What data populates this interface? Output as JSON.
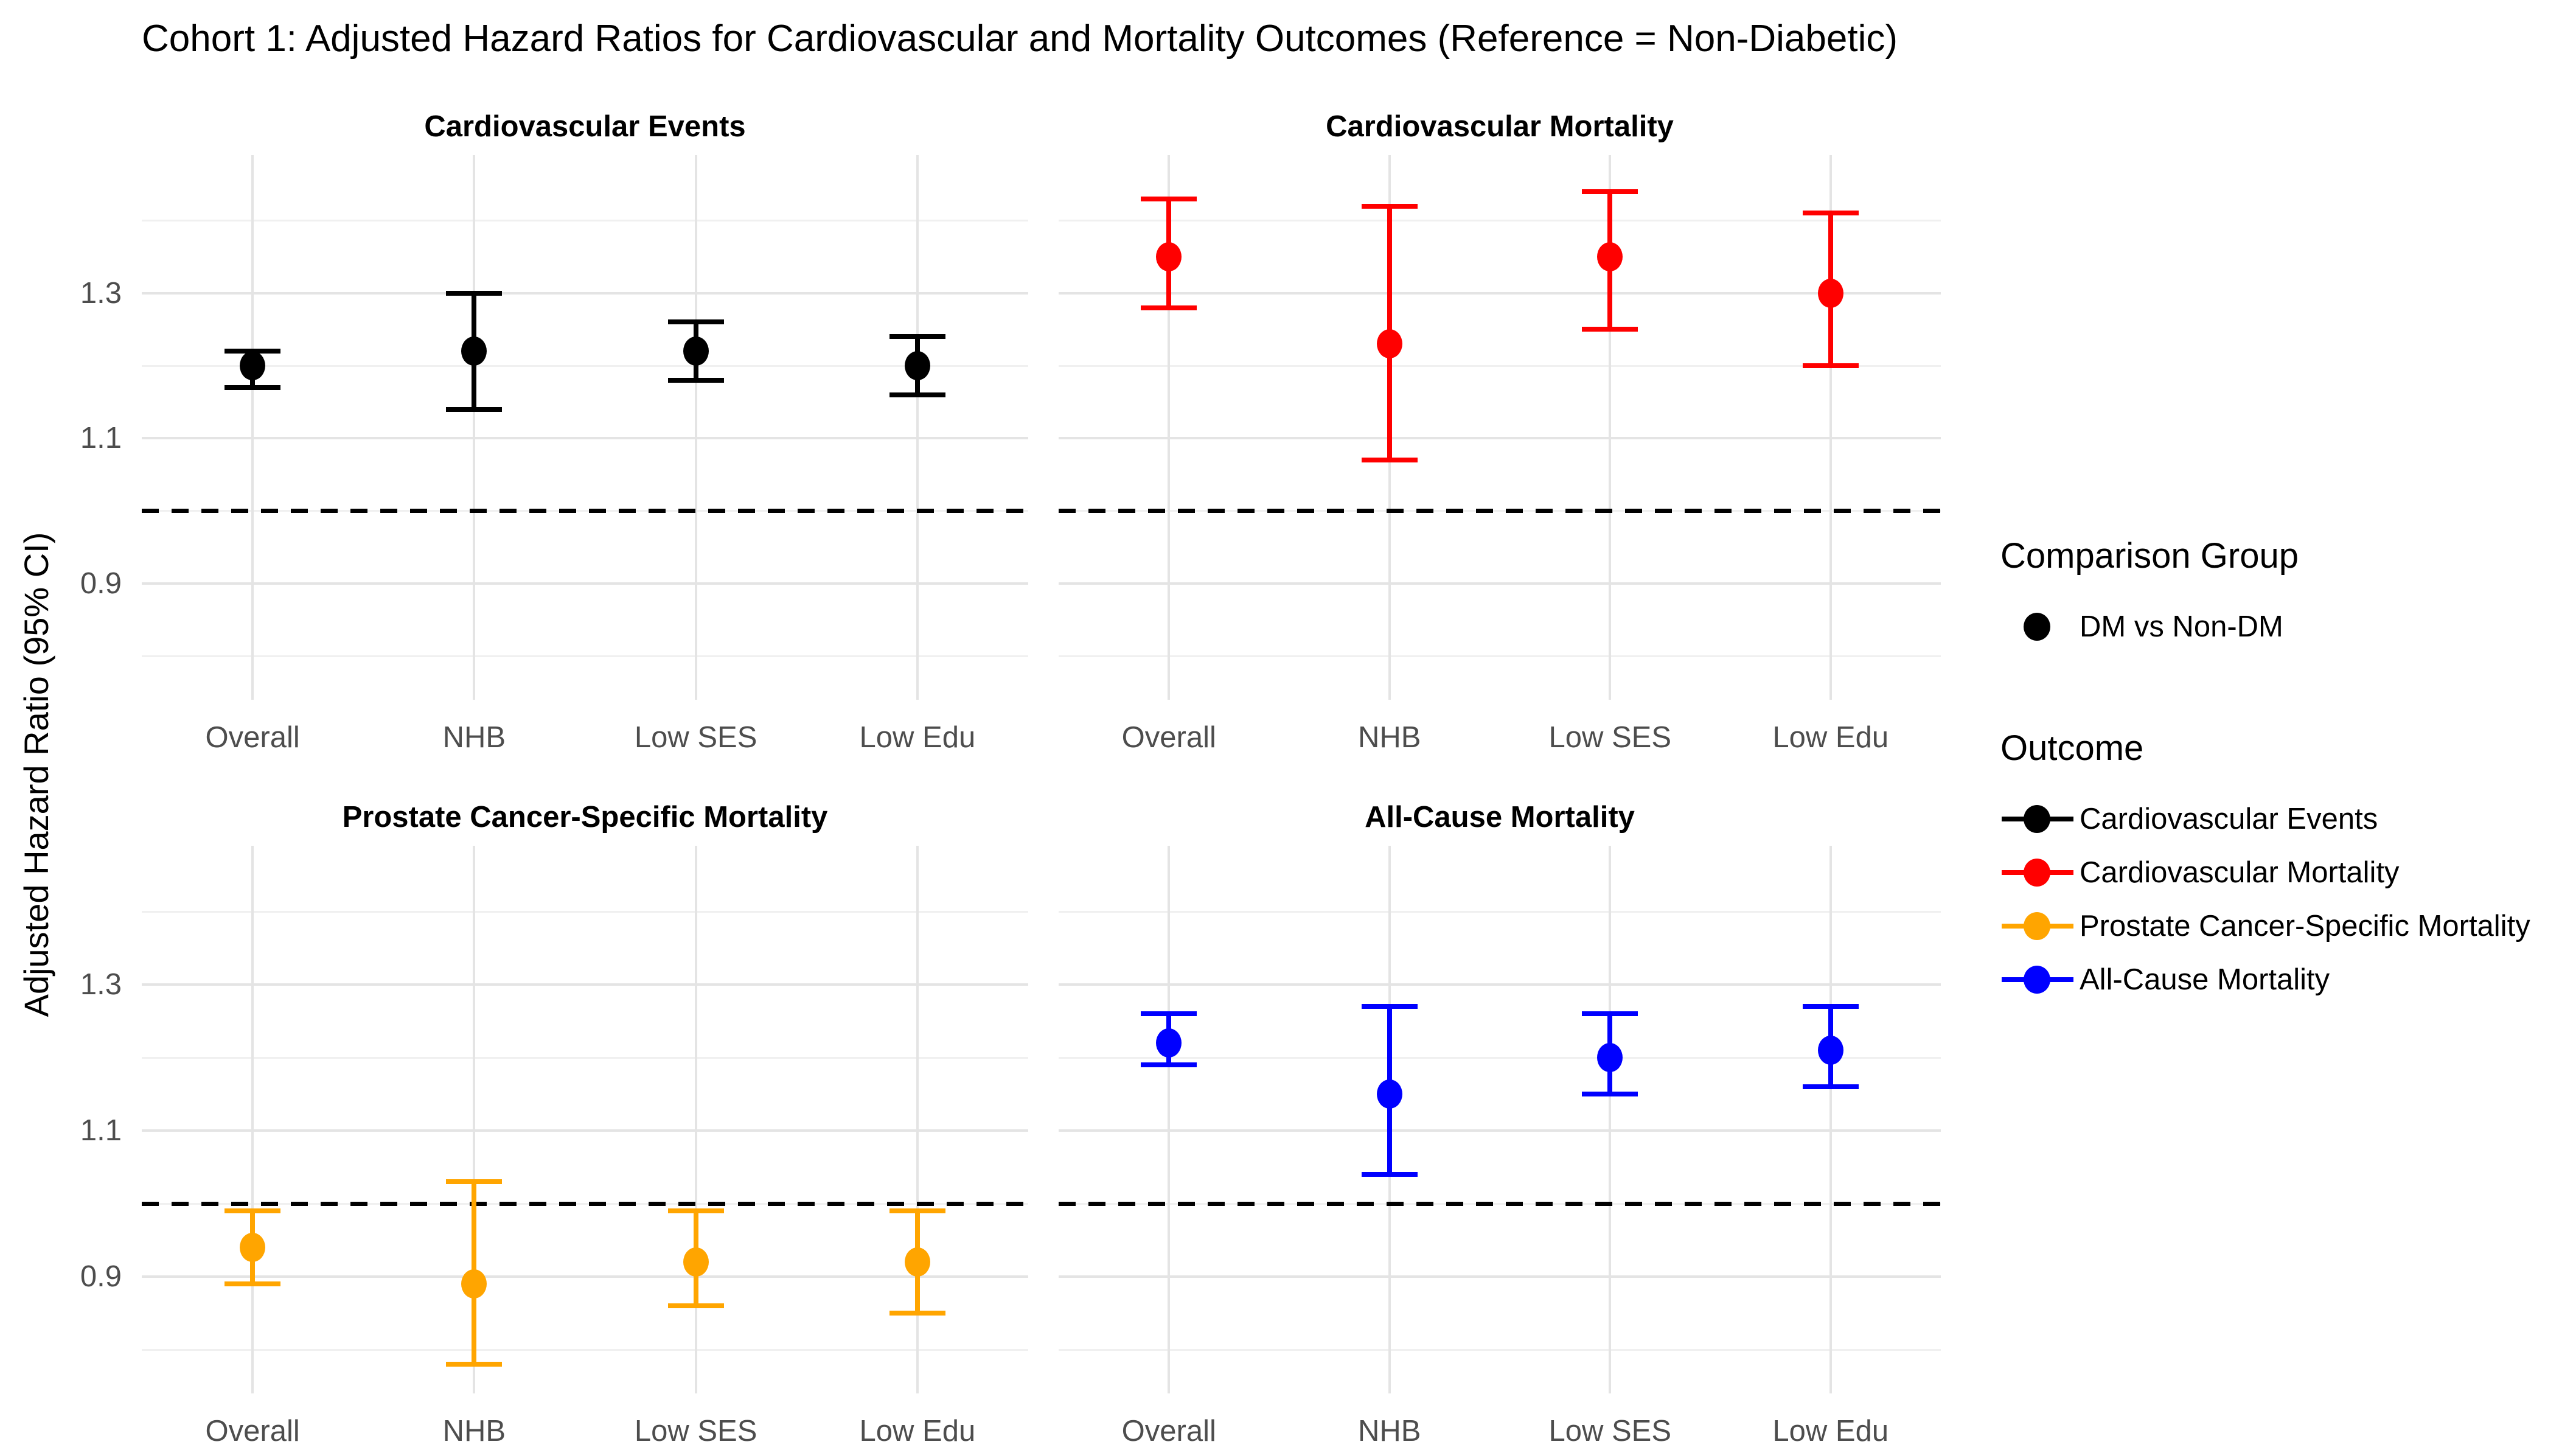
{
  "title": "Cohort 1: Adjusted Hazard Ratios for Cardiovascular and Mortality Outcomes (Reference = Non-Diabetic)",
  "y_axis_label": "Adjusted Hazard Ratio (95% CI)",
  "legend": {
    "groups": [
      {
        "title": "Comparison Group",
        "items": [
          {
            "label": "DM vs Non-DM",
            "color": "#000000",
            "type": "point"
          }
        ]
      },
      {
        "title": "Outcome",
        "items": [
          {
            "label": "Cardiovascular Events",
            "color": "#000000",
            "type": "pointrange"
          },
          {
            "label": "Cardiovascular Mortality",
            "color": "#ff0000",
            "type": "pointrange"
          },
          {
            "label": "Prostate Cancer-Specific Mortality",
            "color": "#ffa500",
            "type": "pointrange"
          },
          {
            "label": "All-Cause Mortality",
            "color": "#0000ff",
            "type": "pointrange"
          }
        ]
      }
    ]
  },
  "chart_data": {
    "type": "pointrange-forest",
    "facet_layout": "2x2",
    "categories": [
      "Overall",
      "NHB",
      "Low SES",
      "Low Edu"
    ],
    "ytick_labels": [
      "1.3",
      "1.1",
      "0.9"
    ],
    "yticks": [
      1.3,
      1.1,
      0.9
    ],
    "minor_ticks": [
      1.4,
      1.2,
      1.0,
      0.8
    ],
    "ylim": [
      0.74,
      1.49
    ],
    "reference_line": 1.0,
    "reference_line_style": "dashed",
    "grid": true,
    "legend_position": "right",
    "xlabel": "",
    "ylabel": "Adjusted Hazard Ratio (95% CI)",
    "facets": [
      {
        "title": "Cardiovascular Events",
        "color": "#000000",
        "series": [
          {
            "category": "Overall",
            "hr": 1.2,
            "lo": 1.17,
            "hi": 1.22
          },
          {
            "category": "NHB",
            "hr": 1.22,
            "lo": 1.14,
            "hi": 1.3
          },
          {
            "category": "Low SES",
            "hr": 1.22,
            "lo": 1.18,
            "hi": 1.26
          },
          {
            "category": "Low Edu",
            "hr": 1.2,
            "lo": 1.16,
            "hi": 1.24
          }
        ]
      },
      {
        "title": "Cardiovascular Mortality",
        "color": "#ff0000",
        "series": [
          {
            "category": "Overall",
            "hr": 1.35,
            "lo": 1.28,
            "hi": 1.43
          },
          {
            "category": "NHB",
            "hr": 1.23,
            "lo": 1.07,
            "hi": 1.42
          },
          {
            "category": "Low SES",
            "hr": 1.35,
            "lo": 1.25,
            "hi": 1.44
          },
          {
            "category": "Low Edu",
            "hr": 1.3,
            "lo": 1.2,
            "hi": 1.41
          }
        ]
      },
      {
        "title": "Prostate Cancer-Specific Mortality",
        "color": "#ffa500",
        "series": [
          {
            "category": "Overall",
            "hr": 0.94,
            "lo": 0.89,
            "hi": 0.99
          },
          {
            "category": "NHB",
            "hr": 0.89,
            "lo": 0.78,
            "hi": 1.03
          },
          {
            "category": "Low SES",
            "hr": 0.92,
            "lo": 0.86,
            "hi": 0.99
          },
          {
            "category": "Low Edu",
            "hr": 0.92,
            "lo": 0.85,
            "hi": 0.99
          }
        ]
      },
      {
        "title": "All-Cause Mortality",
        "color": "#0000ff",
        "series": [
          {
            "category": "Overall",
            "hr": 1.22,
            "lo": 1.19,
            "hi": 1.26
          },
          {
            "category": "NHB",
            "hr": 1.15,
            "lo": 1.04,
            "hi": 1.27
          },
          {
            "category": "Low SES",
            "hr": 1.2,
            "lo": 1.15,
            "hi": 1.26
          },
          {
            "category": "Low Edu",
            "hr": 1.21,
            "lo": 1.16,
            "hi": 1.27
          }
        ]
      }
    ]
  }
}
